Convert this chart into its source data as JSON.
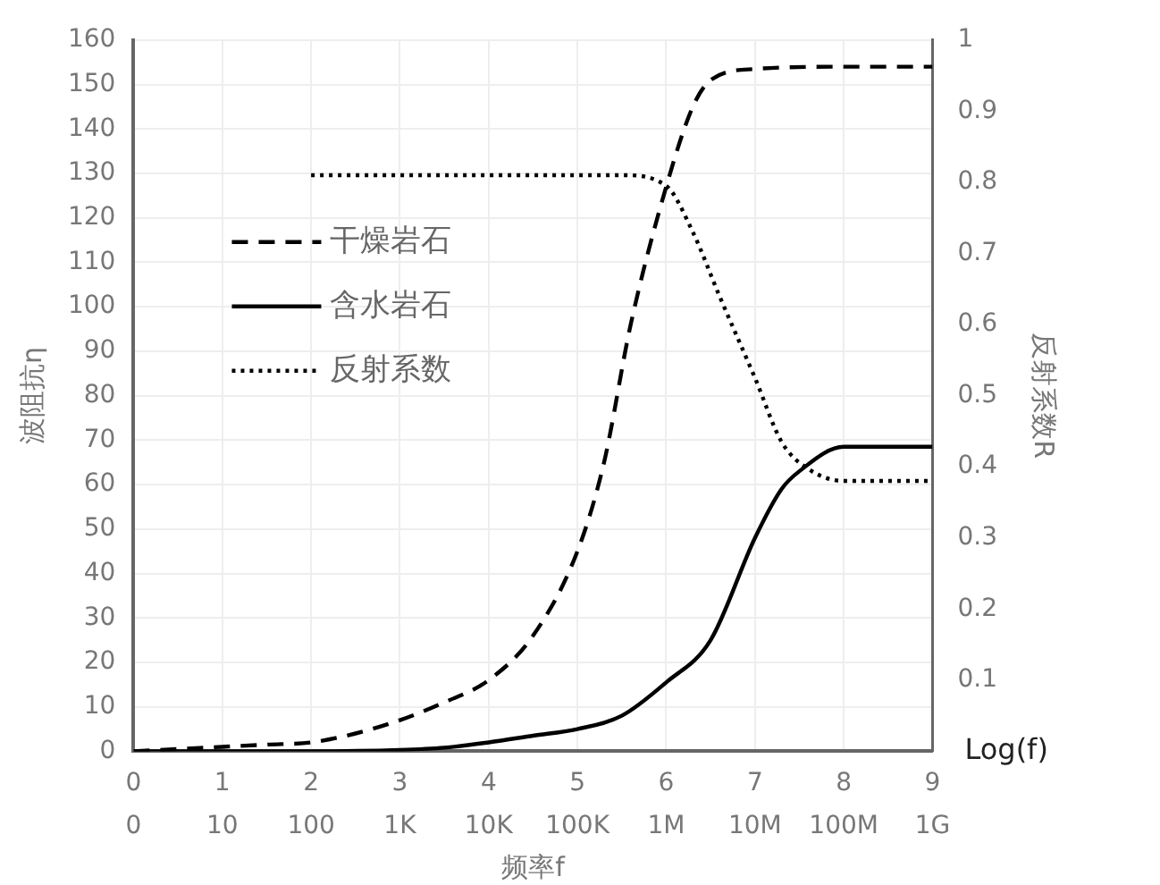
{
  "chart_data": {
    "type": "line",
    "xlabel": "频率f",
    "ylabel": "波阻抗η",
    "y2label": "反射系数R",
    "annotations": [
      "Log(f)",
      "0",
      "10",
      "100",
      "1K",
      "10K",
      "100K",
      "1M",
      "10M",
      "100M",
      "1G"
    ],
    "xlim": [
      0,
      9
    ],
    "xticks": [
      0,
      1,
      2,
      3,
      4,
      5,
      6,
      7,
      8,
      9
    ],
    "ylim": [
      0,
      160
    ],
    "yticks": [
      0,
      10,
      20,
      30,
      40,
      50,
      60,
      70,
      80,
      90,
      100,
      110,
      120,
      130,
      140,
      150,
      160
    ],
    "y2lim": [
      0,
      1
    ],
    "y2ticks": [
      0.1,
      0.2,
      0.3,
      0.4,
      0.5,
      0.6,
      0.7,
      0.8,
      0.9,
      1
    ],
    "grid": true,
    "legend": "top left",
    "marker": "none",
    "series": [
      {
        "name": "干燥岩石",
        "color": "#000000",
        "line_style": "dashed",
        "x": [
          0,
          0.5,
          1,
          1.5,
          2,
          2.5,
          3,
          3.5,
          4,
          4.5,
          5,
          5.3,
          5.6,
          6,
          6.3,
          6.5,
          7,
          8,
          9
        ],
        "values": [
          0,
          0.5,
          1,
          1.5,
          2,
          4,
          7,
          11,
          16,
          26,
          45,
          65,
          96,
          127,
          145,
          151,
          153.5,
          154,
          154
        ]
      },
      {
        "name": "含水岩石",
        "color": "#000000",
        "line_style": "solid",
        "x": [
          0,
          1,
          2,
          3,
          3.5,
          4,
          4.5,
          5,
          5.5,
          6,
          6.5,
          7,
          7.3,
          7.5,
          8,
          9
        ],
        "values": [
          0,
          0,
          0,
          0.3,
          0.8,
          2,
          3.5,
          5,
          8,
          15.5,
          25,
          48,
          59,
          63,
          68.5,
          68.5
        ]
      },
      {
        "name": "反射系数",
        "color": "#000000",
        "line_style": "dotted",
        "axis": "y2",
        "x": [
          2,
          3,
          4,
          5,
          5.5,
          6,
          6.3,
          6.6,
          7,
          7.3,
          7.6,
          8,
          9
        ],
        "values": [
          0.81,
          0.81,
          0.81,
          0.81,
          0.81,
          0.795,
          0.73,
          0.64,
          0.525,
          0.435,
          0.397,
          0.38,
          0.38
        ]
      }
    ]
  }
}
